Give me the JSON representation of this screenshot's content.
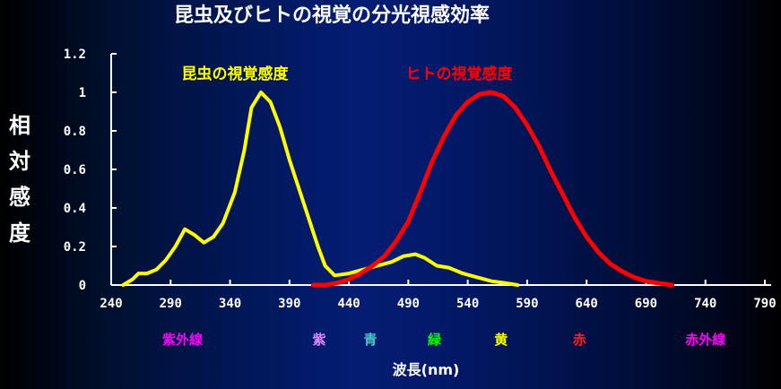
{
  "chart_data": {
    "type": "line",
    "title": "昆虫及びヒトの視覚の分光視感効率",
    "xlabel": "波長(nm)",
    "ylabel": "相対感度",
    "xlim": [
      240,
      795
    ],
    "ylim": [
      0,
      1.2
    ],
    "x_ticks": [
      240,
      290,
      340,
      390,
      440,
      490,
      540,
      590,
      640,
      690,
      740,
      790
    ],
    "y_ticks": [
      {
        "value": 0,
        "label": "0"
      },
      {
        "value": 0.2,
        "label": "0.2"
      },
      {
        "value": 0.4,
        "label": "0.4"
      },
      {
        "value": 0.6,
        "label": "0.6"
      },
      {
        "value": 0.8,
        "label": "0.8"
      },
      {
        "value": 1.0,
        "label": "1"
      },
      {
        "value": 1.2,
        "label": "1.2"
      }
    ],
    "grid": false,
    "series": [
      {
        "name": "昆虫の視覚感度",
        "color": "#ffff00",
        "points": [
          [
            250,
            0
          ],
          [
            258,
            0.03
          ],
          [
            263,
            0.06
          ],
          [
            270,
            0.06
          ],
          [
            278,
            0.08
          ],
          [
            286,
            0.13
          ],
          [
            294,
            0.2
          ],
          [
            302,
            0.29
          ],
          [
            310,
            0.26
          ],
          [
            318,
            0.22
          ],
          [
            326,
            0.25
          ],
          [
            334,
            0.32
          ],
          [
            344,
            0.48
          ],
          [
            352,
            0.7
          ],
          [
            358,
            0.92
          ],
          [
            366,
            1.0
          ],
          [
            374,
            0.95
          ],
          [
            382,
            0.82
          ],
          [
            390,
            0.65
          ],
          [
            398,
            0.5
          ],
          [
            406,
            0.35
          ],
          [
            414,
            0.2
          ],
          [
            420,
            0.1
          ],
          [
            428,
            0.05
          ],
          [
            440,
            0.06
          ],
          [
            452,
            0.08
          ],
          [
            464,
            0.1
          ],
          [
            476,
            0.12
          ],
          [
            486,
            0.15
          ],
          [
            496,
            0.16
          ],
          [
            504,
            0.14
          ],
          [
            514,
            0.1
          ],
          [
            524,
            0.09
          ],
          [
            536,
            0.06
          ],
          [
            548,
            0.04
          ],
          [
            560,
            0.02
          ],
          [
            572,
            0.01
          ],
          [
            582,
            0
          ]
        ]
      },
      {
        "name": "ヒトの視覚感度",
        "color": "#ff0000",
        "points": [
          [
            410,
            0
          ],
          [
            420,
            0
          ],
          [
            430,
            0.01
          ],
          [
            440,
            0.03
          ],
          [
            450,
            0.06
          ],
          [
            460,
            0.1
          ],
          [
            470,
            0.15
          ],
          [
            480,
            0.23
          ],
          [
            490,
            0.33
          ],
          [
            500,
            0.48
          ],
          [
            510,
            0.64
          ],
          [
            520,
            0.77
          ],
          [
            530,
            0.88
          ],
          [
            540,
            0.95
          ],
          [
            550,
            0.99
          ],
          [
            560,
            1.0
          ],
          [
            570,
            0.98
          ],
          [
            580,
            0.92
          ],
          [
            590,
            0.83
          ],
          [
            600,
            0.72
          ],
          [
            610,
            0.59
          ],
          [
            620,
            0.47
          ],
          [
            630,
            0.35
          ],
          [
            640,
            0.25
          ],
          [
            650,
            0.17
          ],
          [
            660,
            0.11
          ],
          [
            670,
            0.07
          ],
          [
            680,
            0.04
          ],
          [
            690,
            0.02
          ],
          [
            700,
            0.01
          ],
          [
            712,
            0
          ]
        ]
      }
    ],
    "bands": [
      {
        "label": "紫外線",
        "color": "#ff00ff",
        "x": 300
      },
      {
        "label": "紫",
        "color": "#dd88ff",
        "x": 415
      },
      {
        "label": "青",
        "color": "#44cccc",
        "x": 458
      },
      {
        "label": "緑",
        "color": "#00ff00",
        "x": 512
      },
      {
        "label": "黄",
        "color": "#ffff00",
        "x": 568
      },
      {
        "label": "赤",
        "color": "#ff2020",
        "x": 634
      },
      {
        "label": "赤外線",
        "color": "#ff00ff",
        "x": 740
      }
    ]
  }
}
